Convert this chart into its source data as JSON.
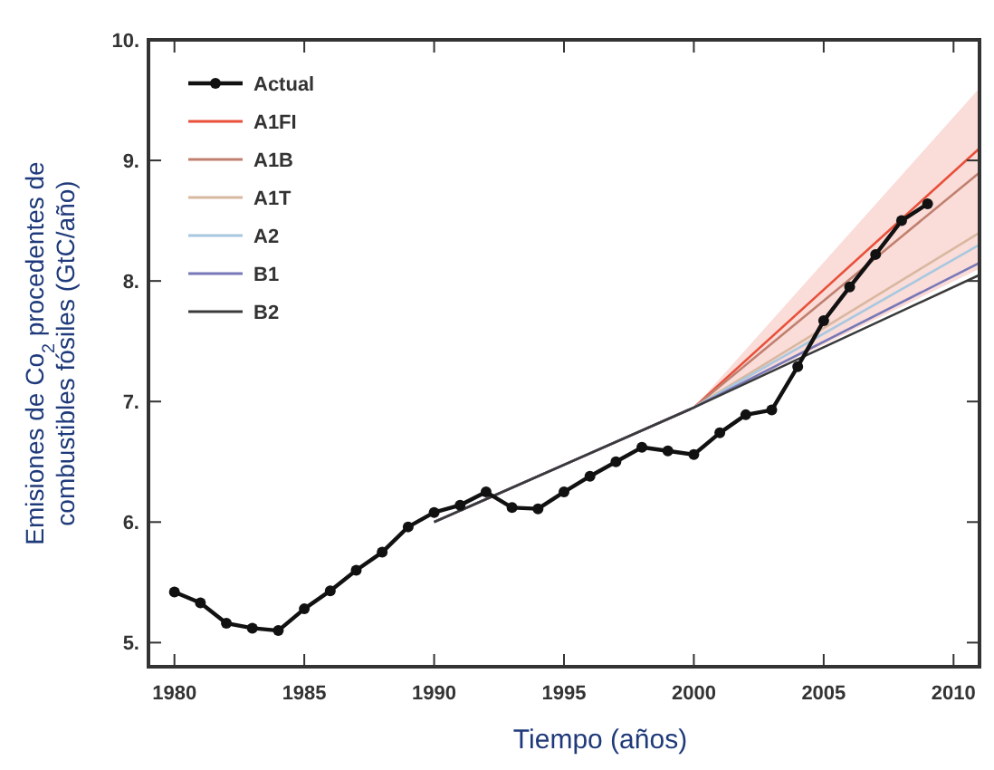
{
  "chart_data": {
    "type": "line",
    "xlabel": "Tiempo (años)",
    "ylabel": "Emisiones de Co$_{2}$ procedentes de combustibles fósiles (GtC/año)",
    "xlim": [
      1979,
      2011
    ],
    "ylim": [
      4.8,
      10
    ],
    "xticks": [
      1980,
      1985,
      1990,
      1995,
      2000,
      2005,
      2010
    ],
    "yticks": [
      {
        "value": 5,
        "label": "5."
      },
      {
        "value": 6,
        "label": "6."
      },
      {
        "value": 7,
        "label": "7."
      },
      {
        "value": 8,
        "label": "8."
      },
      {
        "value": 9,
        "label": "9."
      },
      {
        "value": 10,
        "label": "10."
      }
    ],
    "grid": false,
    "legend": "top left",
    "line_style": "solid",
    "series": [
      {
        "name": "Actual",
        "color": "#111111",
        "marker": "circle",
        "x": [
          1980,
          1981,
          1982,
          1983,
          1984,
          1985,
          1986,
          1987,
          1988,
          1989,
          1990,
          1991,
          1992,
          1993,
          1994,
          1995,
          1996,
          1997,
          1998,
          1999,
          2000,
          2001,
          2002,
          2003,
          2004,
          2005,
          2006,
          2007,
          2008,
          2009
        ],
        "values": [
          5.42,
          5.33,
          5.16,
          5.12,
          5.1,
          5.28,
          5.43,
          5.6,
          5.75,
          5.96,
          6.08,
          6.14,
          6.25,
          6.12,
          6.11,
          6.25,
          6.38,
          6.5,
          6.62,
          6.59,
          6.56,
          6.74,
          6.89,
          6.93,
          7.29,
          7.67,
          7.95,
          8.22,
          8.5,
          8.64
        ]
      },
      {
        "name": "A1FI",
        "color": "#e8503a",
        "marker": "none",
        "x": [
          1990,
          2000,
          2011
        ],
        "values": [
          6.0,
          6.95,
          9.1
        ],
        "lower": [
          6.0,
          6.95,
          8.1
        ],
        "upper": [
          6.0,
          6.95,
          9.6
        ]
      },
      {
        "name": "A1B",
        "color": "#c08070",
        "marker": "none",
        "x": [
          1990,
          2000,
          2011
        ],
        "values": [
          6.0,
          6.95,
          8.9
        ]
      },
      {
        "name": "A1T",
        "color": "#d8b8a0",
        "marker": "none",
        "x": [
          1990,
          2000,
          2011
        ],
        "values": [
          6.0,
          6.95,
          8.4
        ]
      },
      {
        "name": "A2",
        "color": "#a8c8e0",
        "marker": "none",
        "x": [
          1990,
          2000,
          2011
        ],
        "values": [
          6.0,
          6.95,
          8.3
        ]
      },
      {
        "name": "B1",
        "color": "#7878b8",
        "marker": "none",
        "x": [
          1990,
          2000,
          2011
        ],
        "values": [
          6.0,
          6.95,
          8.15
        ]
      },
      {
        "name": "B2",
        "color": "#3a3a3a",
        "marker": "none",
        "x": [
          1990,
          2000,
          2011
        ],
        "values": [
          6.0,
          6.95,
          8.05
        ]
      }
    ]
  }
}
